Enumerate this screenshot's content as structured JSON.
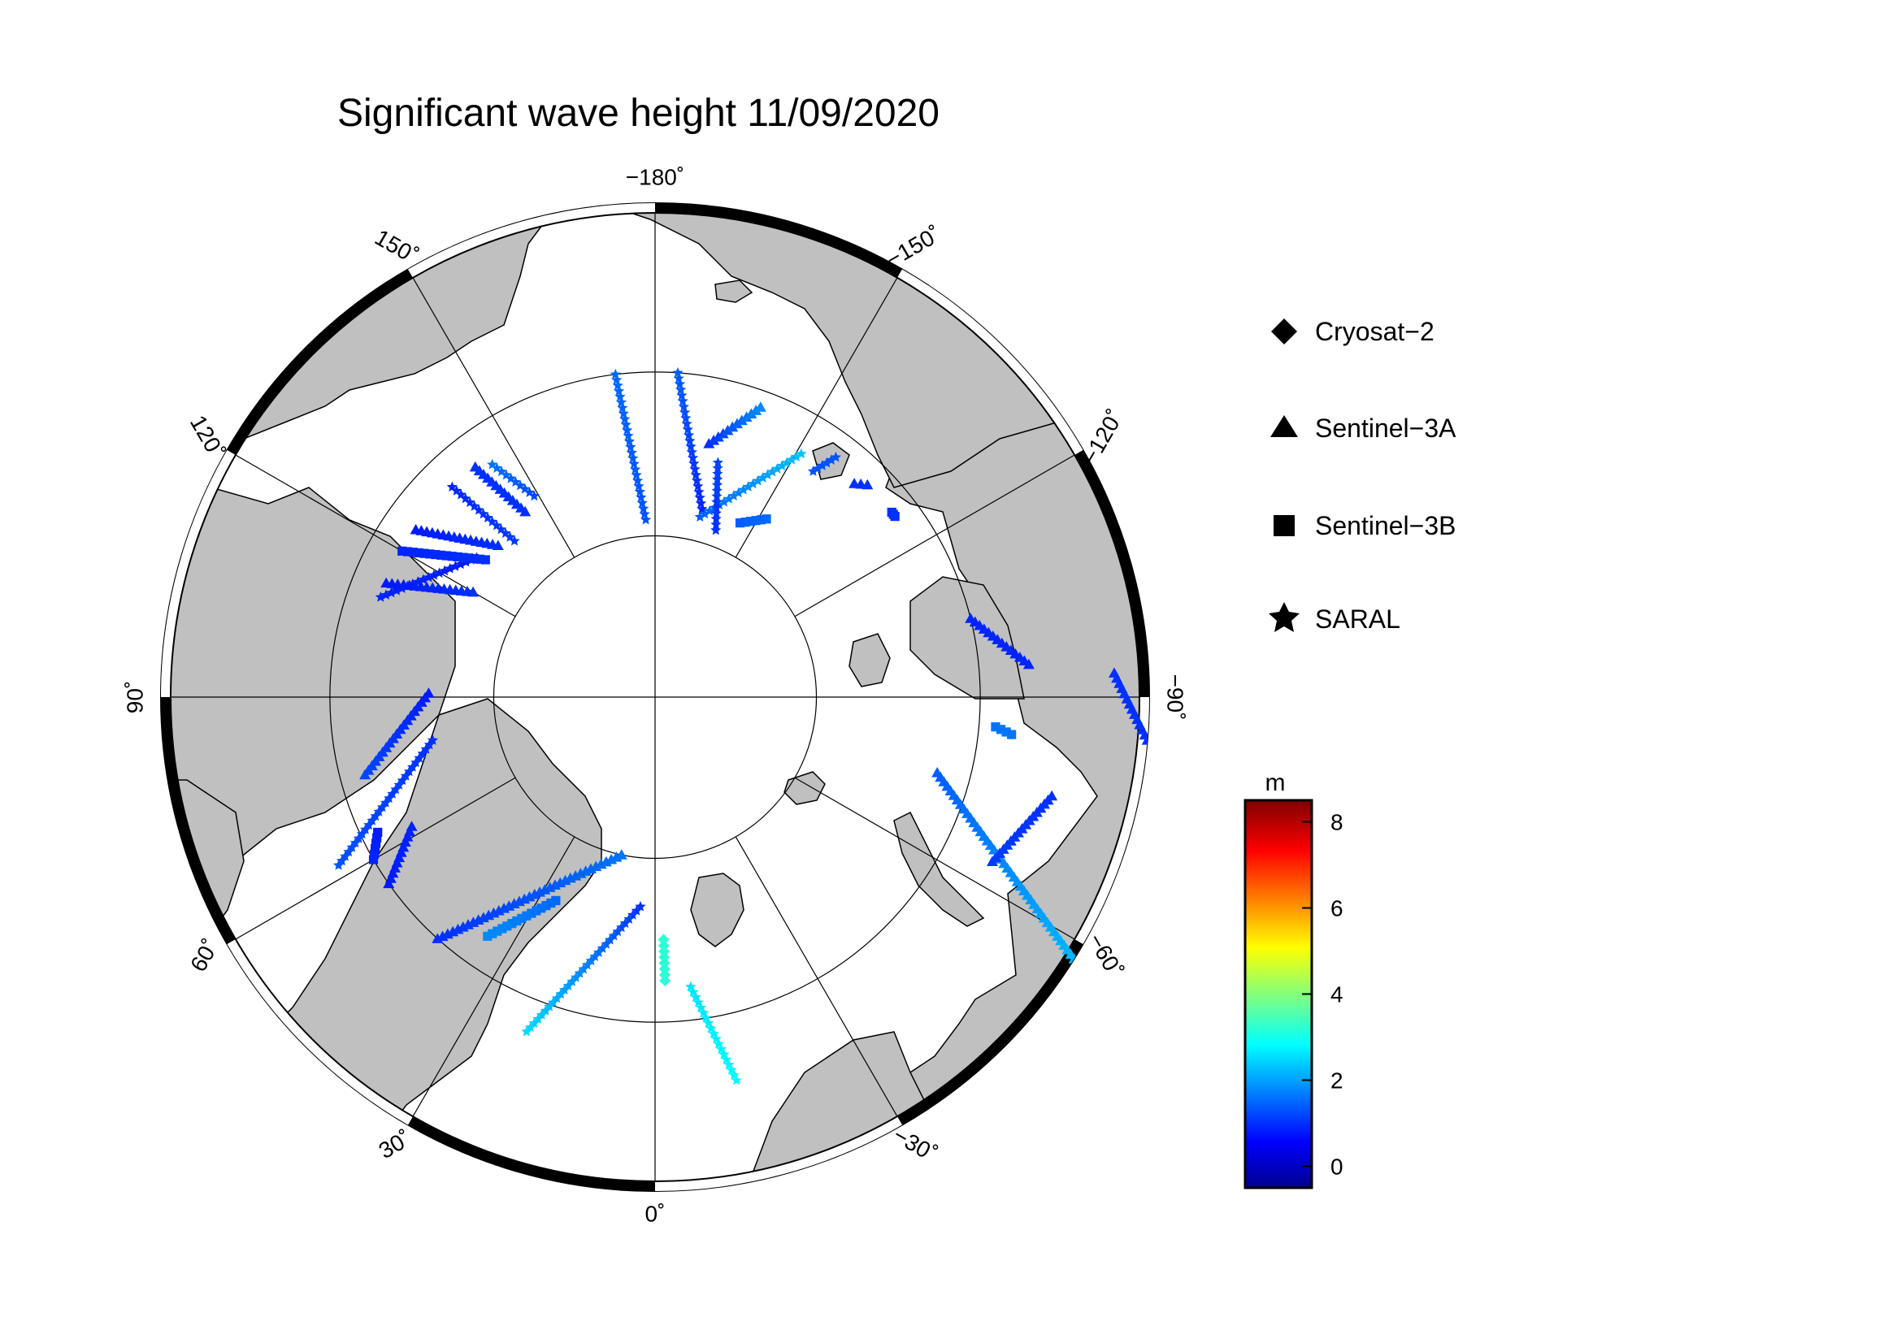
{
  "title": "Significant wave height 11/09/2020",
  "map": {
    "projection": "north-polar-stereographic",
    "min_latitude": 60,
    "graticule_latitudes": [
      70,
      80
    ],
    "graticule_longitude_step": 30,
    "ocean_color": "#ffffff",
    "land_color": "#c0c0c0",
    "longitude_labels": [
      {
        "lon": 180,
        "text": "−180˚"
      },
      {
        "lon": 150,
        "text": "150˚"
      },
      {
        "lon": 120,
        "text": "120˚"
      },
      {
        "lon": 90,
        "text": "90˚"
      },
      {
        "lon": 60,
        "text": "60˚"
      },
      {
        "lon": 30,
        "text": "30˚"
      },
      {
        "lon": 0,
        "text": "0˚"
      },
      {
        "lon": -30,
        "text": "−30˚"
      },
      {
        "lon": -60,
        "text": "−60˚"
      },
      {
        "lon": -90,
        "text": "−90˚"
      },
      {
        "lon": -120,
        "text": "−120˚"
      },
      {
        "lon": -150,
        "text": "−150˚"
      }
    ]
  },
  "legend": {
    "items": [
      {
        "label": "Cryosat−2",
        "symbol": "diamond"
      },
      {
        "label": "Sentinel−3A",
        "symbol": "triangle"
      },
      {
        "label": "Sentinel−3B",
        "symbol": "square"
      },
      {
        "label": "SARAL",
        "symbol": "star"
      }
    ]
  },
  "colorbar": {
    "unit": "m",
    "min": -0.5,
    "max": 8.5,
    "ticks": [
      0,
      2,
      4,
      6,
      8
    ],
    "tick_labels": [
      "0",
      "2",
      "4",
      "6",
      "8"
    ],
    "colormap": "jet",
    "colors": [
      "#00008f",
      "#0000ff",
      "#00ffff",
      "#ffff00",
      "#ff0000",
      "#800000"
    ]
  },
  "chart_data": {
    "type": "scatter",
    "title": "Significant wave height 11/09/2020",
    "value_label": "m",
    "color_range": [
      -0.5,
      8.5
    ],
    "tracks": [
      {
        "satellite": "SARAL",
        "symbol": "star",
        "start": [
          -7,
          72
        ],
        "end": [
          -12,
          66
        ],
        "swh": [
          2.6,
          2.8
        ]
      },
      {
        "satellite": "Cryosat-2",
        "symbol": "diamond",
        "start": [
          -2,
          75
        ],
        "end": [
          -2,
          72.5
        ],
        "swh": [
          3.2,
          3.2
        ]
      },
      {
        "satellite": "SARAL",
        "symbol": "star",
        "start": [
          4,
          77
        ],
        "end": [
          21,
          68
        ],
        "swh": [
          1.0,
          2.5
        ]
      },
      {
        "satellite": "Sentinel-3A",
        "symbol": "triangle",
        "start": [
          12,
          80
        ],
        "end": [
          42,
          70
        ],
        "swh": [
          1.6,
          1.0
        ]
      },
      {
        "satellite": "Sentinel-3B",
        "symbol": "square",
        "start": [
          26,
          76
        ],
        "end": [
          35,
          72
        ],
        "swh": [
          1.5,
          1.8
        ]
      },
      {
        "satellite": "SARAL",
        "symbol": "star",
        "start": [
          79,
          76
        ],
        "end": [
          62,
          68
        ],
        "swh": [
          1.0,
          1.3
        ]
      },
      {
        "satellite": "Sentinel-3A",
        "symbol": "triangle",
        "start": [
          91,
          76
        ],
        "end": [
          75,
          71.5
        ],
        "swh": [
          0.8,
          1.2
        ]
      },
      {
        "satellite": "Sentinel-3B",
        "symbol": "square",
        "start": [
          64,
          71
        ],
        "end": [
          60,
          70
        ],
        "swh": [
          0.8,
          0.9
        ]
      },
      {
        "satellite": "Sentinel-3A",
        "symbol": "triangle",
        "start": [
          62,
          73
        ],
        "end": [
          55,
          70
        ],
        "swh": [
          0.9,
          0.8
        ]
      },
      {
        "satellite": "SARAL",
        "symbol": "star",
        "start": [
          128,
          76
        ],
        "end": [
          110,
          72
        ],
        "swh": [
          0.8,
          0.9
        ]
      },
      {
        "satellite": "Sentinel-3A",
        "symbol": "triangle",
        "start": [
          120,
          77
        ],
        "end": [
          113,
          72
        ],
        "swh": [
          1.0,
          0.8
        ]
      },
      {
        "satellite": "Sentinel-3B",
        "symbol": "square",
        "start": [
          129,
          76.5
        ],
        "end": [
          120,
          72
        ],
        "swh": [
          1.0,
          0.9
        ]
      },
      {
        "satellite": "SARAL",
        "symbol": "star",
        "start": [
          138,
          77
        ],
        "end": [
          136,
          72
        ],
        "swh": [
          1.1,
          0.9
        ]
      },
      {
        "satellite": "Sentinel-3A",
        "symbol": "triangle",
        "start": [
          134,
          76.5
        ],
        "end": [
          125,
          72
        ],
        "swh": [
          1.0,
          0.8
        ]
      },
      {
        "satellite": "SARAL",
        "symbol": "star",
        "start": [
          177,
          79
        ],
        "end": [
          173,
          70
        ],
        "swh": [
          1.3,
          1.5
        ]
      },
      {
        "satellite": "Sentinel-3A",
        "symbol": "triangle",
        "start": [
          145,
          76
        ],
        "end": [
          142,
          72
        ],
        "swh": [
          1.0,
          1.0
        ]
      },
      {
        "satellite": "SARAL",
        "symbol": "star",
        "start": [
          149,
          75.5
        ],
        "end": [
          145,
          72.5
        ],
        "swh": [
          1.2,
          1.6
        ]
      },
      {
        "satellite": "SARAL",
        "symbol": "star",
        "start": [
          -166,
          78
        ],
        "end": [
          -176,
          70
        ],
        "swh": [
          0.9,
          1.4
        ]
      },
      {
        "satellite": "Sentinel-3A",
        "symbol": "triangle",
        "start": [
          -168,
          74
        ],
        "end": [
          -160,
          71
        ],
        "swh": [
          1.0,
          1.8
        ]
      },
      {
        "satellite": "SARAL",
        "symbol": "star",
        "start": [
          -166,
          78.5
        ],
        "end": [
          -149,
          72.5
        ],
        "swh": [
          1.4,
          2.3
        ]
      },
      {
        "satellite": "SARAL",
        "symbol": "star",
        "start": [
          -160,
          79
        ],
        "end": [
          -165,
          75
        ],
        "swh": [
          1.0,
          1.2
        ]
      },
      {
        "satellite": "Sentinel-3B",
        "symbol": "square",
        "start": [
          -154,
          78
        ],
        "end": [
          -148,
          77
        ],
        "swh": [
          1.4,
          1.5
        ]
      },
      {
        "satellite": "SARAL",
        "symbol": "star",
        "start": [
          -145,
          73
        ],
        "end": [
          -143,
          71.5
        ],
        "swh": [
          1.3,
          1.3
        ]
      },
      {
        "satellite": "Sentinel-3A",
        "symbol": "triangle",
        "start": [
          -137,
          72
        ],
        "end": [
          -135,
          71.5
        ],
        "swh": [
          1.0,
          1.0
        ]
      },
      {
        "satellite": "Sentinel-3B",
        "symbol": "square",
        "start": [
          -128,
          71.5
        ],
        "end": [
          -127,
          71.5
        ],
        "swh": [
          1.0,
          1.0
        ]
      },
      {
        "satellite": "Sentinel-3A",
        "symbol": "triangle",
        "start": [
          -104,
          70
        ],
        "end": [
          -95,
          67
        ],
        "swh": [
          0.9,
          0.9
        ]
      },
      {
        "satellite": "Sentinel-3A",
        "symbol": "triangle",
        "start": [
          -75,
          72
        ],
        "end": [
          -58,
          60
        ],
        "swh": [
          1.4,
          2.2
        ]
      },
      {
        "satellite": "Sentinel-3A",
        "symbol": "triangle",
        "start": [
          -76,
          65
        ],
        "end": [
          -64,
          67
        ],
        "swh": [
          1.0,
          1.1
        ]
      },
      {
        "satellite": "Sentinel-3A",
        "symbol": "triangle",
        "start": [
          -93,
          62
        ],
        "end": [
          -85,
          60
        ],
        "swh": [
          1.0,
          1.0
        ]
      },
      {
        "satellite": "Sentinel-3B",
        "symbol": "square",
        "start": [
          -85,
          69
        ],
        "end": [
          -84,
          68
        ],
        "swh": [
          1.6,
          1.6
        ]
      }
    ]
  }
}
